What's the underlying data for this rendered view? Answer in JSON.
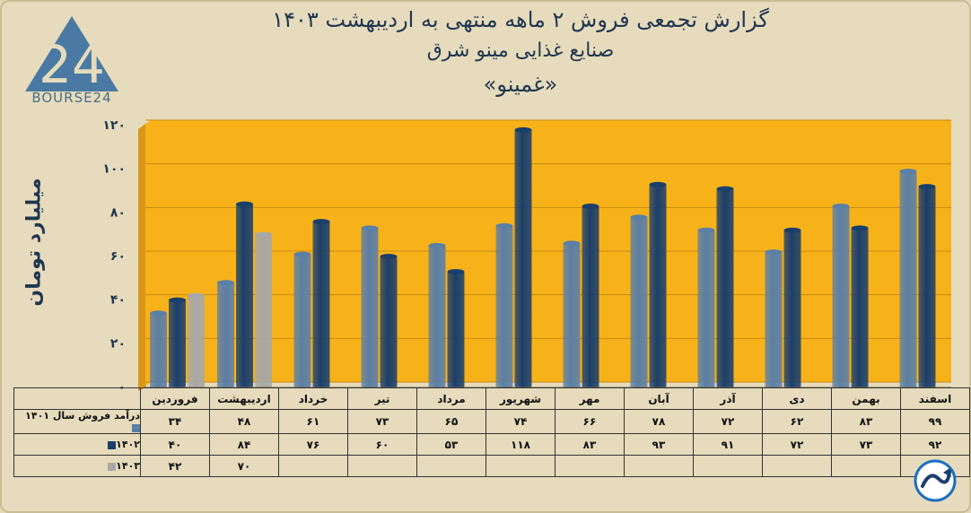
{
  "header": {
    "title_line1": "گزارش تجمعی فروش ۲ ماهه منتهی به اردیبهشت ۱۴۰۳",
    "title_line2": "صنایع غذایی مینو شرق",
    "title_line3": "«غمینو»"
  },
  "logo": {
    "text": "BOURSE24"
  },
  "chart_data": {
    "type": "bar",
    "ylabel": "میلیارد تومان",
    "ylim": [
      0,
      120
    ],
    "yticks": [
      "۰",
      "۲۰",
      "۴۰",
      "۶۰",
      "۸۰",
      "۱۰۰",
      "۱۲۰"
    ],
    "ytick_values": [
      0,
      20,
      40,
      60,
      80,
      100,
      120
    ],
    "categories": [
      "فروردین",
      "اردیبهشت",
      "خرداد",
      "تیر",
      "مرداد",
      "شهریور",
      "مهر",
      "آبان",
      "آذر",
      "دی",
      "بهمن",
      "اسفند"
    ],
    "series": [
      {
        "name": "درآمد فروش سال ۱۴۰۱",
        "color": "#5b7fa6",
        "values": [
          34,
          48,
          61,
          73,
          65,
          74,
          66,
          78,
          72,
          62,
          83,
          99
        ],
        "labels": [
          "۳۴",
          "۴۸",
          "۶۱",
          "۷۳",
          "۶۵",
          "۷۴",
          "۶۶",
          "۷۸",
          "۷۲",
          "۶۲",
          "۸۳",
          "۹۹"
        ]
      },
      {
        "name": "۱۴۰۲",
        "color": "#1b3f6b",
        "values": [
          40,
          84,
          76,
          60,
          53,
          118,
          83,
          93,
          91,
          72,
          73,
          92
        ],
        "labels": [
          "۴۰",
          "۸۴",
          "۷۶",
          "۶۰",
          "۵۳",
          "۱۱۸",
          "۸۳",
          "۹۳",
          "۹۱",
          "۷۲",
          "۷۳",
          "۹۲"
        ]
      },
      {
        "name": "۱۴۰۳",
        "color": "#a8a8a8",
        "values": [
          42,
          70,
          null,
          null,
          null,
          null,
          null,
          null,
          null,
          null,
          null,
          null
        ],
        "labels": [
          "۴۲",
          "۷۰",
          "",
          "",
          "",
          "",
          "",
          "",
          "",
          "",
          "",
          ""
        ]
      }
    ],
    "plot_background": "#f7b21a",
    "grid": true,
    "legend": "table-left"
  },
  "colors": {
    "background": "#e6dbbc",
    "title": "#1f3650",
    "accent": "#f7b21a"
  },
  "icons": {
    "brand_swirl": "swirl-arrow-icon"
  }
}
